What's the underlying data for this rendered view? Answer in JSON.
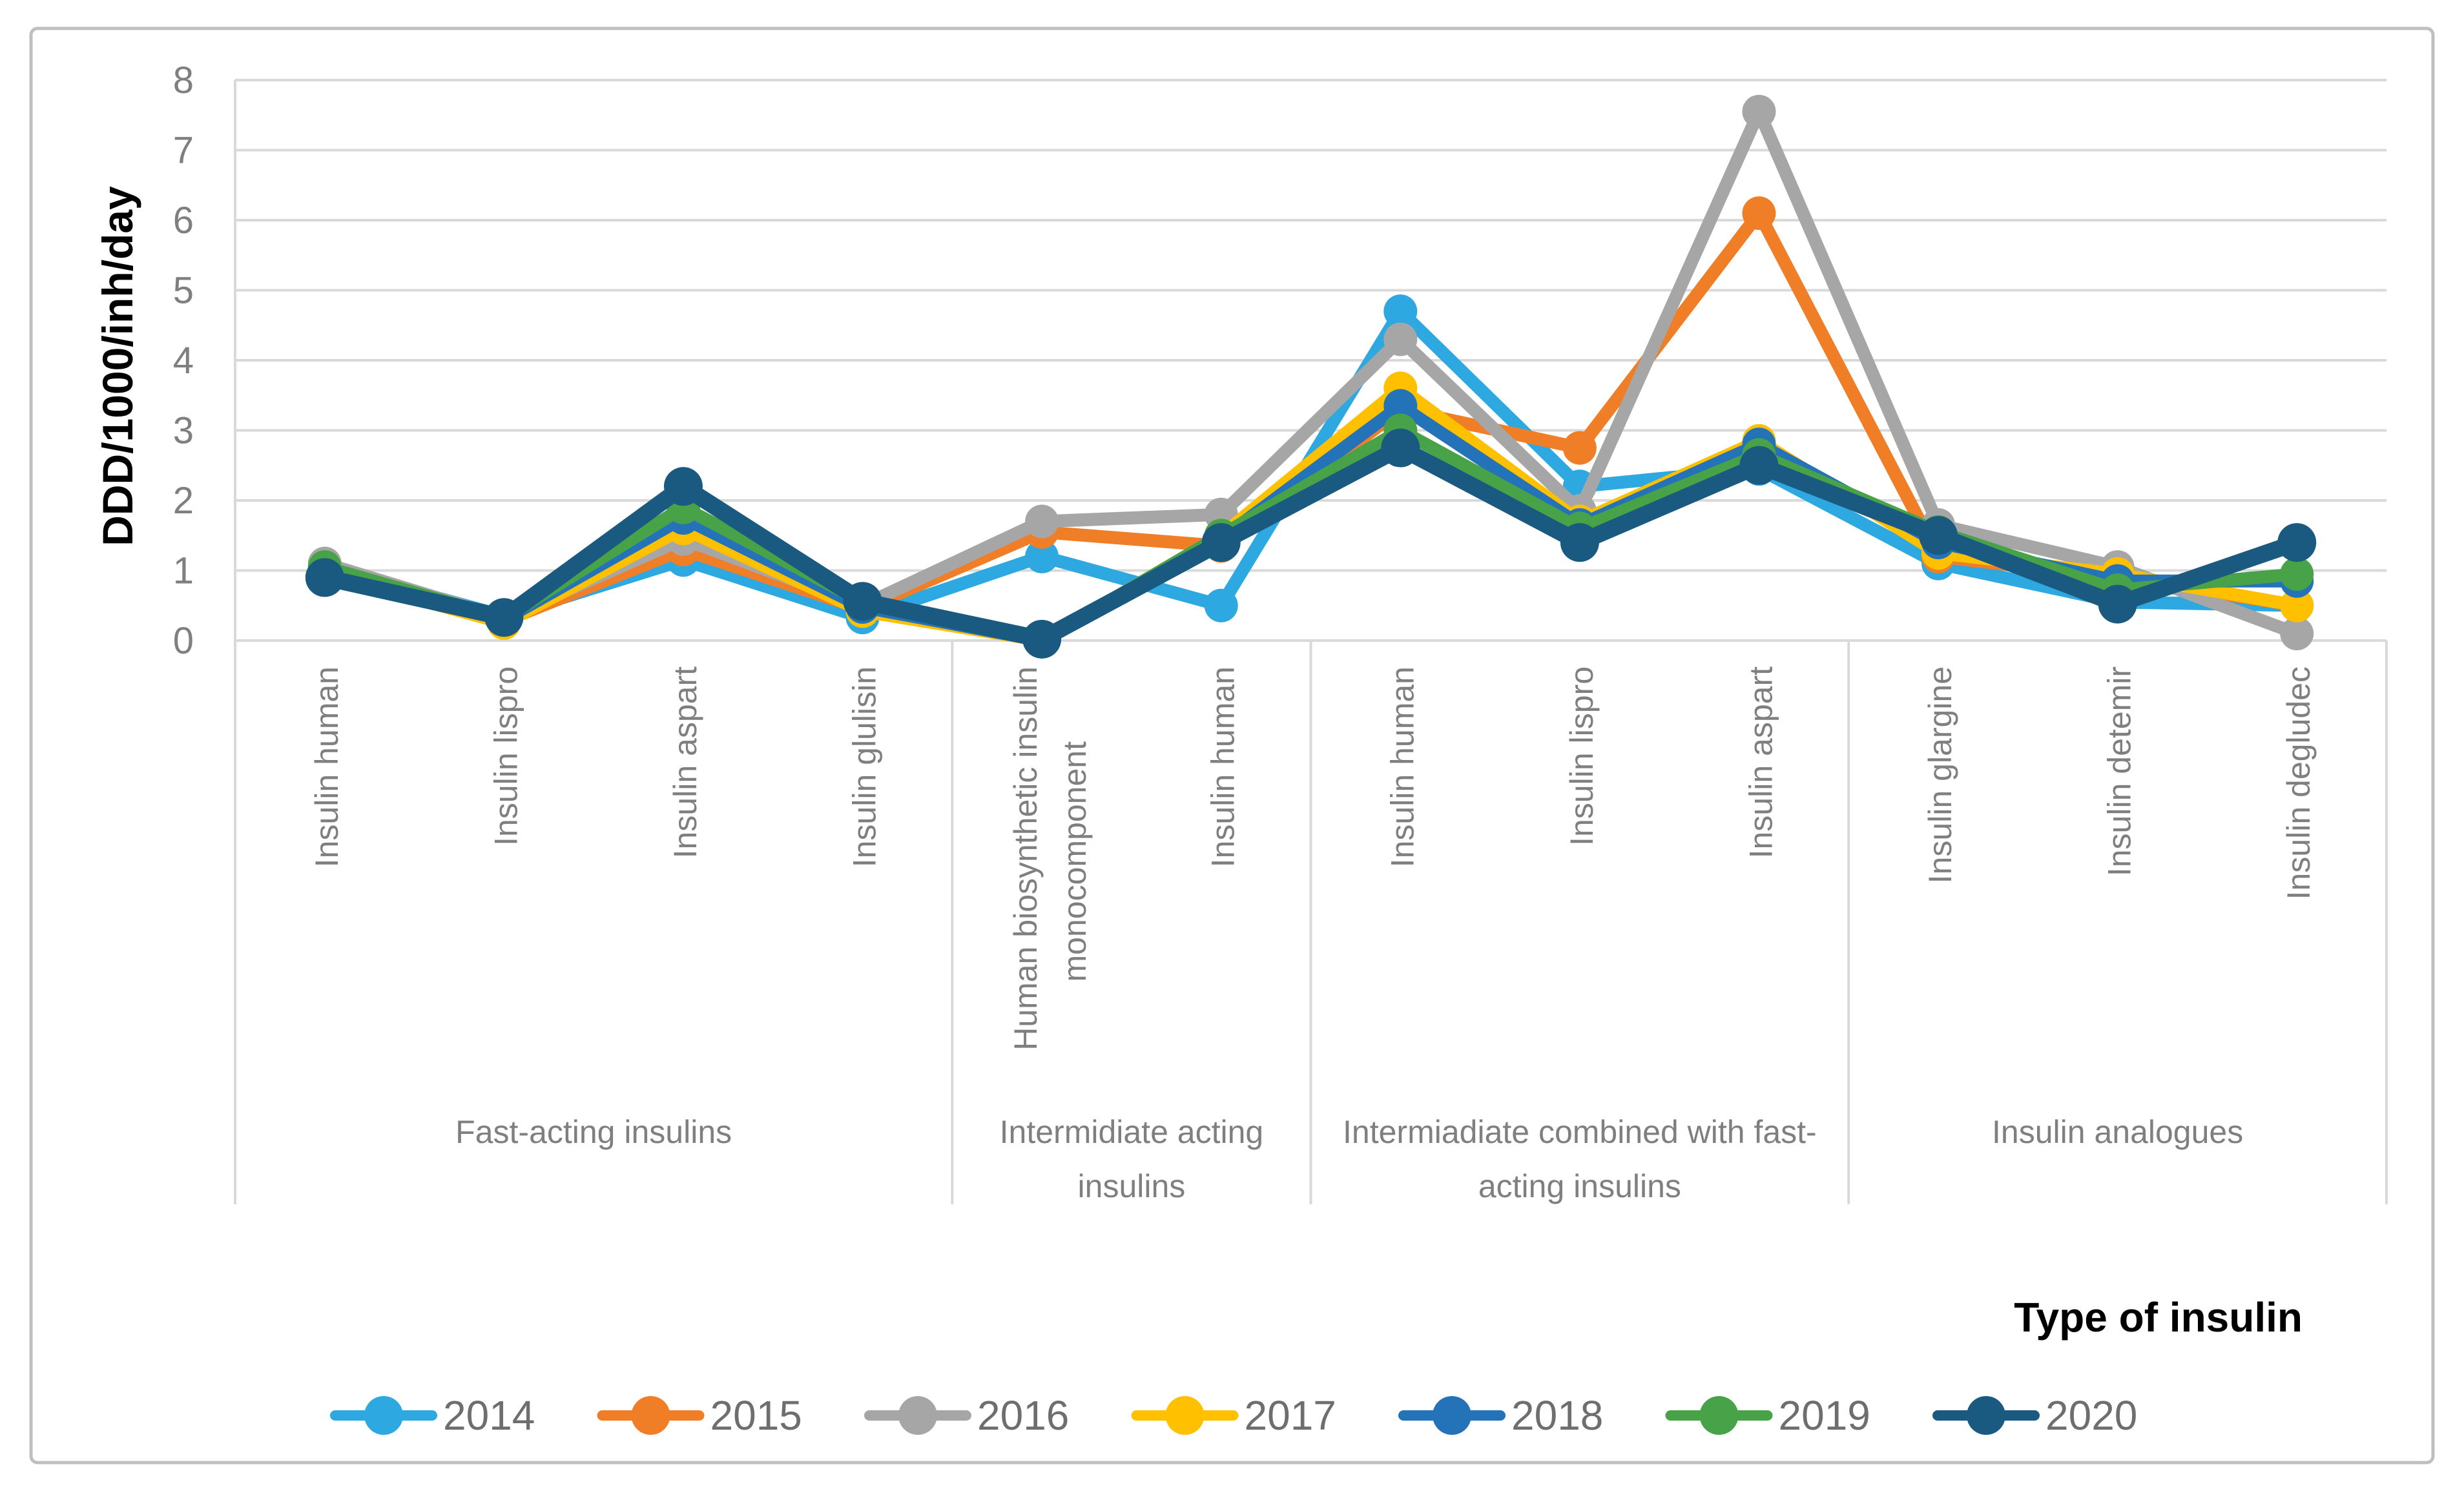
{
  "figure": {
    "background": "#FFFFFF",
    "border_color": "#BFBFBF",
    "grid_color": "#D9D9D9",
    "axis_line_color": "#D9D9D9",
    "tick_label_color": "#7F7F7F",
    "category_label_color": "#7F7F7F",
    "group_label_color": "#7F7F7F",
    "legend_text_color": "#6E6E6E",
    "title_text_color": "#000000"
  },
  "chart_data": {
    "type": "line",
    "title": "",
    "ylabel": "DDD/1000/inh/day",
    "xlabel": "Type of insulin",
    "ylim": [
      0,
      8
    ],
    "yticks": [
      0,
      1,
      2,
      3,
      4,
      5,
      6,
      7,
      8
    ],
    "grid": true,
    "legend_position": "bottom",
    "categories": [
      {
        "label": "Insulin human",
        "lines": [
          "Insulin human"
        ]
      },
      {
        "label": "Insulin lispro",
        "lines": [
          "Insulin lispro"
        ]
      },
      {
        "label": "Insulin aspart",
        "lines": [
          "Insulin aspart"
        ]
      },
      {
        "label": "Insulin glulisin",
        "lines": [
          "Insulin glulisin"
        ]
      },
      {
        "label": "Human biosynthetic insulin monocomponent",
        "lines": [
          "Human biosynthetic insulin",
          "monocomponent"
        ]
      },
      {
        "label": "Insulin human",
        "lines": [
          "Insulin human"
        ]
      },
      {
        "label": "Insulin human",
        "lines": [
          "Insulin human"
        ]
      },
      {
        "label": "Insulin lispro",
        "lines": [
          "Insulin lispro"
        ]
      },
      {
        "label": "Insulin aspart",
        "lines": [
          "Insulin aspart"
        ]
      },
      {
        "label": "Insulin glargine",
        "lines": [
          "Insulin glargine"
        ]
      },
      {
        "label": "Insulin detemir",
        "lines": [
          "Insulin detemir"
        ]
      },
      {
        "label": "Insulin degludec",
        "lines": [
          "Insulin degludec"
        ]
      }
    ],
    "groups": [
      {
        "label": "Fast-acting insulins",
        "lines": [
          "Fast-acting insulins"
        ],
        "start": 0,
        "end": 3
      },
      {
        "label": "Intermidiate acting insulins",
        "lines": [
          "Intermidiate acting",
          "insulins"
        ],
        "start": 4,
        "end": 5
      },
      {
        "label": "Intermiadiate combined with fast-acting insulins",
        "lines": [
          "Intermiadiate combined with fast-",
          "acting insulins"
        ],
        "start": 6,
        "end": 8
      },
      {
        "label": "Insulin analogues",
        "lines": [
          "Insulin analogues"
        ],
        "start": 9,
        "end": 11
      }
    ],
    "series": [
      {
        "name": "2014",
        "color": "#2DA8E0",
        "values": [
          1.05,
          0.35,
          1.15,
          0.33,
          1.2,
          0.5,
          4.7,
          2.2,
          2.45,
          1.1,
          0.55,
          0.5
        ]
      },
      {
        "name": "2015",
        "color": "#F07E27",
        "values": [
          0.95,
          0.28,
          1.3,
          0.45,
          1.55,
          1.35,
          3.3,
          2.75,
          6.1,
          1.2,
          0.9,
          0.5
        ]
      },
      {
        "name": "2016",
        "color": "#A6A6A6",
        "values": [
          1.1,
          0.32,
          1.45,
          0.5,
          1.7,
          1.8,
          4.3,
          1.85,
          7.55,
          1.65,
          1.05,
          0.1
        ]
      },
      {
        "name": "2017",
        "color": "#FFC000",
        "values": [
          0.95,
          0.25,
          1.6,
          0.42,
          0,
          1.5,
          3.6,
          1.7,
          2.85,
          1.25,
          0.95,
          0.5
        ]
      },
      {
        "name": "2018",
        "color": "#2473B9",
        "values": [
          1.0,
          0.3,
          1.75,
          0.48,
          0,
          1.45,
          3.35,
          1.65,
          2.8,
          1.4,
          0.85,
          0.85
        ]
      },
      {
        "name": "2019",
        "color": "#48A348",
        "values": [
          1.05,
          0.32,
          1.9,
          0.55,
          0,
          1.5,
          3.0,
          1.6,
          2.65,
          1.55,
          0.72,
          0.95
        ]
      },
      {
        "name": "2020",
        "color": "#1A5980",
        "values": [
          0.9,
          0.33,
          2.2,
          0.56,
          0.02,
          1.4,
          2.75,
          1.4,
          2.5,
          1.5,
          0.52,
          1.4
        ]
      }
    ]
  }
}
